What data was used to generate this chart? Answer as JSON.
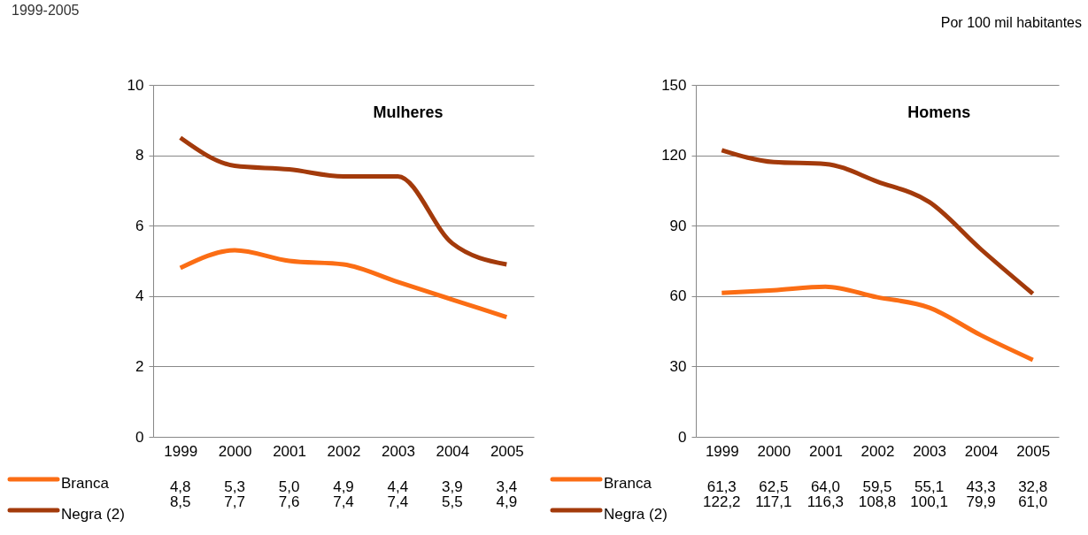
{
  "chart_data": [
    {
      "type": "line",
      "title": "Mulheres",
      "annotations": [
        "1999-2005"
      ],
      "categories": [
        "1999",
        "2000",
        "2001",
        "2002",
        "2003",
        "2004",
        "2005"
      ],
      "ylim": [
        0,
        10
      ],
      "yticks": [
        0,
        2,
        4,
        6,
        8,
        10
      ],
      "grid": "y",
      "legend": "bottom",
      "marker": "none",
      "line_style": "solid",
      "series": [
        {
          "name": "Branca",
          "color": "#fb6d14",
          "values": [
            4.8,
            5.3,
            5.0,
            4.9,
            4.4,
            3.9,
            3.4
          ],
          "value_labels": [
            "4,8",
            "5,3",
            "5,0",
            "4,9",
            "4,4",
            "3,9",
            "3,4"
          ]
        },
        {
          "name": "Negra (2)",
          "color": "#a33a0b",
          "values": [
            8.5,
            7.7,
            7.6,
            7.4,
            7.4,
            5.5,
            4.9
          ],
          "value_labels": [
            "8,5",
            "7,7",
            "7,6",
            "7,4",
            "7,4",
            "5,5",
            "4,9"
          ]
        }
      ]
    },
    {
      "type": "line",
      "title": "Homens",
      "annotations": [
        "Por 100 mil habitantes"
      ],
      "categories": [
        "1999",
        "2000",
        "2001",
        "2002",
        "2003",
        "2004",
        "2005"
      ],
      "ylim": [
        0,
        150
      ],
      "yticks": [
        0,
        30,
        60,
        90,
        120,
        150
      ],
      "grid": "y",
      "legend": "bottom",
      "marker": "none",
      "line_style": "solid",
      "series": [
        {
          "name": "Branca",
          "color": "#fb6d14",
          "values": [
            61.3,
            62.5,
            64.0,
            59.5,
            55.1,
            43.3,
            32.8
          ],
          "value_labels": [
            "61,3",
            "62,5",
            "64,0",
            "59,5",
            "55,1",
            "43,3",
            "32,8"
          ]
        },
        {
          "name": "Negra (2)",
          "color": "#a33a0b",
          "values": [
            122.2,
            117.1,
            116.3,
            108.8,
            100.1,
            79.9,
            61.0
          ],
          "value_labels": [
            "122,2",
            "117,1",
            "116,3",
            "108,8",
            "100,1",
            "79,9",
            "61,0"
          ]
        }
      ]
    }
  ]
}
